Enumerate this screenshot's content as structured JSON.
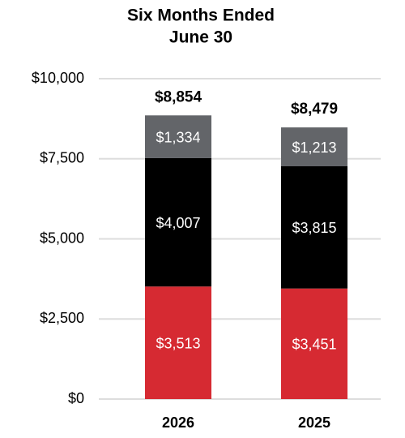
{
  "chart_data": {
    "type": "stacked_bar",
    "title": [
      "Six Months Ended",
      "June 30"
    ],
    "categories": [
      "2026",
      "2025"
    ],
    "series": [
      {
        "color": "#d62a32",
        "values": [
          3513,
          3451
        ],
        "value_labels": [
          "$3,513",
          "$3,451"
        ]
      },
      {
        "color": "#000000",
        "values": [
          4007,
          3815
        ],
        "value_labels": [
          "$4,007",
          "$3,815"
        ]
      },
      {
        "color": "#636569",
        "values": [
          1334,
          1213
        ],
        "value_labels": [
          "$1,334",
          "$1,213"
        ]
      }
    ],
    "totals": [
      8854,
      8479
    ],
    "total_labels": [
      "$8,854",
      "$8,479"
    ],
    "ylim": [
      0,
      10000
    ],
    "yticks": [
      {
        "value": 0,
        "label": "$0"
      },
      {
        "value": 2500,
        "label": "$2,500"
      },
      {
        "value": 5000,
        "label": "$5,000"
      },
      {
        "value": 7500,
        "label": "$7,500"
      },
      {
        "value": 10000,
        "label": "$10,000"
      }
    ],
    "grid": true
  }
}
